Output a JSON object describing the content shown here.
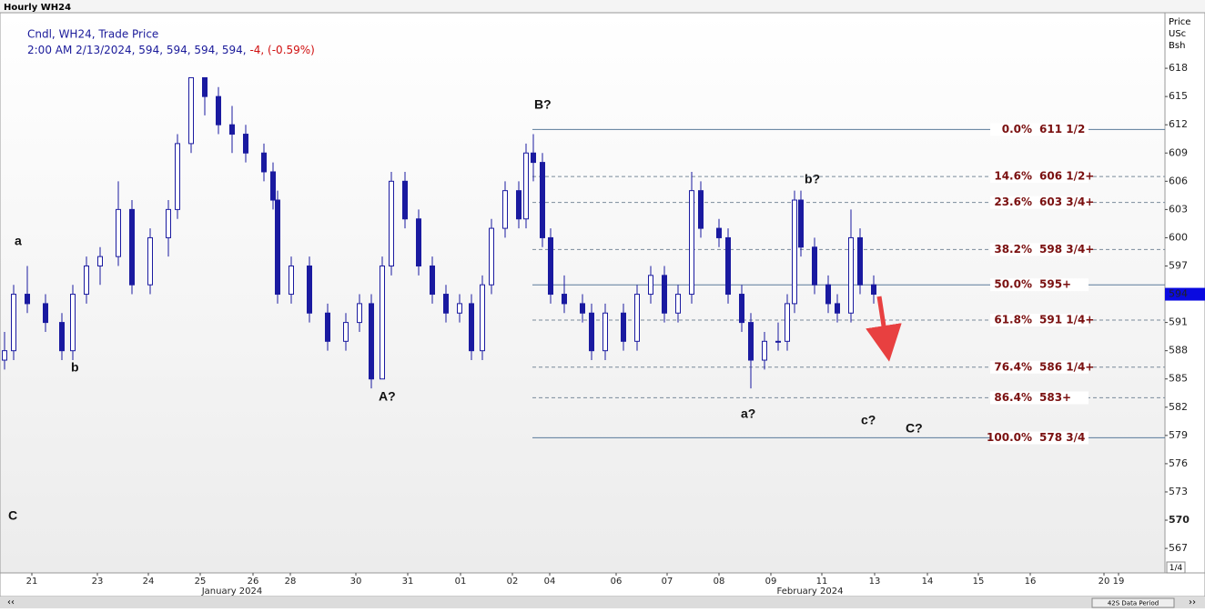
{
  "chart_data": {
    "type": "candlestick",
    "title": "Hourly WH24",
    "legend_line1": "Cndl, WH24, Trade Price",
    "legend_line2": "2:00 AM 2/13/2024, 594, 594, 594, 594,",
    "legend_change": "-4, (-0.59%)",
    "axis_unit": [
      "Price",
      "USc",
      "Bsh"
    ],
    "month_labels": [
      "January 2024",
      "February 2024"
    ],
    "wave_labels": [
      "a",
      "b",
      "A?",
      "B?",
      "a?",
      "b?",
      "c?",
      "C?",
      "C"
    ],
    "color": "#1a1aa0",
    "xlim": [
      0,
      128
    ],
    "ylim": [
      564.4,
      623.9
    ],
    "yticks": [
      567,
      570,
      573,
      576,
      579,
      582,
      585,
      588,
      591,
      597,
      600,
      603,
      606,
      609,
      612,
      615,
      618
    ],
    "xticks": [
      {
        "value": 3.5,
        "label": "21"
      },
      {
        "value": 10.7,
        "label": "23"
      },
      {
        "value": 16.3,
        "label": "24"
      },
      {
        "value": 22.0,
        "label": "25"
      },
      {
        "value": 27.8,
        "label": "26"
      },
      {
        "value": 31.9,
        "label": "28"
      },
      {
        "value": 39.1,
        "label": "30"
      },
      {
        "value": 44.8,
        "label": "31"
      },
      {
        "value": 50.6,
        "label": "01"
      },
      {
        "value": 56.3,
        "label": "02"
      },
      {
        "value": 60.4,
        "label": "04"
      },
      {
        "value": 67.7,
        "label": "06"
      },
      {
        "value": 73.3,
        "label": "07"
      },
      {
        "value": 79.0,
        "label": "08"
      },
      {
        "value": 84.7,
        "label": "09"
      },
      {
        "value": 90.3,
        "label": "11"
      },
      {
        "value": 96.1,
        "label": "13"
      },
      {
        "value": 101.9,
        "label": "14"
      },
      {
        "value": 107.5,
        "label": "15"
      },
      {
        "value": 113.2,
        "label": "16"
      },
      {
        "value": 121.3,
        "label": "20"
      },
      {
        "value": 122.9,
        "label": "19"
      }
    ],
    "last_price": 594,
    "x": [
      0.5,
      1.5,
      3,
      5,
      6.8,
      8,
      9.5,
      11,
      13,
      14.5,
      16.5,
      18.5,
      19.5,
      21,
      22.5,
      24,
      25.5,
      27,
      29,
      30,
      30.5,
      32,
      34,
      36,
      38,
      39.5,
      40.8,
      42,
      43,
      44.5,
      46,
      47.5,
      49,
      50.5,
      51.8,
      53,
      54,
      55.5,
      57,
      57.8,
      58.6,
      59.6,
      60.5,
      62,
      64,
      65,
      66.5,
      68.5,
      70,
      71.5,
      73,
      74.5,
      76,
      77,
      79,
      80,
      81.5,
      82.5,
      84,
      85.5,
      86.5,
      87.3,
      88,
      89.5,
      91,
      92,
      93.5,
      94.5,
      96
    ],
    "open": [
      587,
      588,
      594,
      593,
      591,
      588,
      594,
      597,
      598,
      603,
      595,
      600,
      603,
      610,
      617,
      615,
      612,
      611,
      609,
      607,
      604,
      594,
      597,
      592,
      589,
      591,
      593,
      585,
      597,
      606,
      602,
      597,
      594,
      592,
      593,
      588,
      595,
      601,
      605,
      602,
      609,
      608,
      600,
      594,
      593,
      592,
      588,
      592,
      589,
      594,
      596,
      592,
      594,
      605,
      601,
      600,
      594,
      591,
      587,
      589,
      589,
      593,
      604,
      599,
      595,
      593,
      592,
      600,
      595
    ],
    "high": [
      590,
      595,
      597,
      594,
      592,
      595,
      598,
      599,
      606,
      604,
      601,
      604,
      611,
      617,
      617,
      616,
      614,
      612,
      610,
      608,
      605,
      598,
      598,
      593,
      592,
      594,
      594,
      598,
      607,
      607,
      603,
      598,
      595,
      594,
      594,
      596,
      602,
      606,
      606,
      610,
      611,
      609,
      601,
      596,
      594,
      593,
      593,
      593,
      595,
      597,
      597,
      595,
      607,
      606,
      602,
      601,
      595,
      592,
      590,
      591,
      594,
      605,
      605,
      600,
      596,
      594,
      603,
      601,
      596
    ],
    "low": [
      586,
      587,
      592,
      590,
      587,
      587,
      593,
      595,
      597,
      594,
      594,
      598,
      602,
      609,
      613,
      611,
      609,
      608,
      606,
      603,
      593,
      593,
      591,
      588,
      588,
      590,
      584,
      585,
      596,
      601,
      596,
      593,
      591,
      591,
      587,
      587,
      594,
      600,
      601,
      601,
      606,
      599,
      593,
      592,
      591,
      587,
      587,
      588,
      588,
      593,
      591,
      591,
      593,
      600,
      599,
      593,
      590,
      584,
      586,
      588,
      588,
      592,
      598,
      594,
      592,
      591,
      591,
      594,
      593
    ],
    "close": [
      588,
      594,
      593,
      591,
      588,
      594,
      597,
      598,
      603,
      595,
      600,
      603,
      610,
      617,
      615,
      612,
      611,
      609,
      607,
      604,
      594,
      597,
      592,
      589,
      591,
      593,
      585,
      597,
      606,
      602,
      597,
      594,
      592,
      593,
      588,
      595,
      601,
      605,
      602,
      609,
      608,
      600,
      594,
      593,
      592,
      588,
      592,
      589,
      594,
      596,
      592,
      594,
      605,
      601,
      600,
      594,
      591,
      587,
      589,
      589,
      593,
      604,
      599,
      595,
      593,
      592,
      600,
      595,
      594
    ],
    "fib_start": 58.5,
    "fib_levels": [
      {
        "percent": "0.0%",
        "value": 611.5,
        "label": "611 1/2",
        "style": "solid"
      },
      {
        "percent": "14.6%",
        "value": 606.5,
        "label": "606 1/2+",
        "style": "dashed"
      },
      {
        "percent": "23.6%",
        "value": 603.75,
        "label": "603 3/4+",
        "style": "dashed"
      },
      {
        "percent": "38.2%",
        "value": 598.75,
        "label": "598 3/4+",
        "style": "dashed"
      },
      {
        "percent": "50.0%",
        "value": 595,
        "label": "595+",
        "style": "solid"
      },
      {
        "percent": "61.8%",
        "value": 591.25,
        "label": "591 1/4+",
        "style": "dashed"
      },
      {
        "percent": "76.4%",
        "value": 586.25,
        "label": "586 1/4+",
        "style": "dashed"
      },
      {
        "percent": "86.4%",
        "value": 583,
        "label": "583+",
        "style": "dashed"
      },
      {
        "percent": "100.0%",
        "value": 578.75,
        "label": "578 3/4",
        "style": "solid"
      }
    ]
  },
  "ui": {
    "data_period": "42S Data Period",
    "scale": "1/4"
  }
}
